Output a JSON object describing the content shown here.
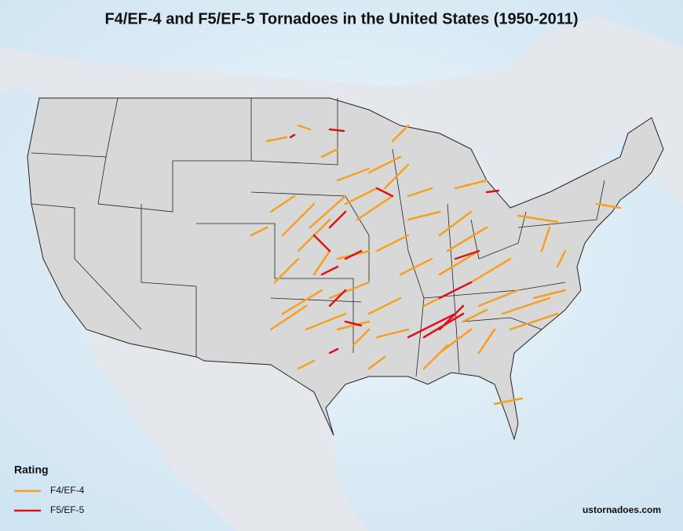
{
  "title": "F4/EF-4 and F5/EF-5 Tornadoes in the United States (1950-2011)",
  "legend": {
    "title": "Rating",
    "items": [
      {
        "label": "F4/EF-4",
        "color": "#f5a020"
      },
      {
        "label": "F5/EF-5",
        "color": "#d8141c"
      }
    ]
  },
  "credit": "ustornadoes.com"
}
